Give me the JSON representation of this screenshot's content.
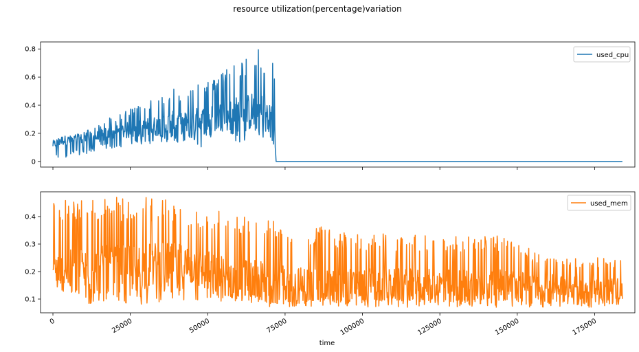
{
  "chart_data": {
    "type": "line",
    "title": "resource utilization(percentage)variation",
    "xlabel": "time",
    "xlim": [
      -4000,
      188000
    ],
    "xticks": [
      0,
      25000,
      50000,
      75000,
      100000,
      125000,
      150000,
      175000
    ],
    "grid": false,
    "subplots": [
      {
        "ylabel": "",
        "ylim": [
          -0.04,
          0.85
        ],
        "yticks": [
          0.0,
          0.2,
          0.4,
          0.6,
          0.8
        ],
        "legend_position": "top-right",
        "series": [
          {
            "name": "used_cpu",
            "color": "#1f77b4",
            "x": [
              0,
              3000,
              6000,
              9000,
              12000,
              15000,
              18000,
              21000,
              24000,
              27000,
              30000,
              33000,
              36000,
              39000,
              42000,
              45000,
              48000,
              51000,
              54000,
              57000,
              60000,
              63000,
              66000,
              69000,
              71500,
              72000,
              80000,
              100000,
              125000,
              150000,
              175000,
              184000
            ],
            "values": [
              0.13,
              0.17,
              0.18,
              0.21,
              0.23,
              0.27,
              0.31,
              0.33,
              0.37,
              0.39,
              0.41,
              0.45,
              0.47,
              0.53,
              0.46,
              0.57,
              0.55,
              0.6,
              0.62,
              0.67,
              0.7,
              0.74,
              0.82,
              0.66,
              0.78,
              0.0,
              0.0,
              0.0,
              0.0,
              0.0,
              0.0,
              0.0
            ],
            "lower_envelope": [
              0.0,
              0.02,
              0.03,
              0.05,
              0.06,
              0.08,
              0.09,
              0.1,
              0.11,
              0.12,
              0.12,
              0.13,
              0.12,
              0.13,
              0.13,
              0.14,
              0.1,
              0.16,
              0.15,
              0.17,
              0.12,
              0.16,
              0.13,
              0.15,
              0.12,
              0.0,
              0.0,
              0.0,
              0.0,
              0.0,
              0.0,
              0.0
            ],
            "typical": [
              0.12,
              0.15,
              0.15,
              0.16,
              0.16,
              0.18,
              0.2,
              0.21,
              0.22,
              0.23,
              0.24,
              0.25,
              0.26,
              0.27,
              0.27,
              0.28,
              0.29,
              0.3,
              0.32,
              0.33,
              0.34,
              0.35,
              0.36,
              0.34,
              0.3,
              0.0,
              0.0,
              0.0,
              0.0,
              0.0,
              0.0,
              0.0
            ]
          }
        ]
      },
      {
        "ylabel": "",
        "ylim": [
          0.05,
          0.49
        ],
        "yticks": [
          0.1,
          0.2,
          0.3,
          0.4
        ],
        "legend_position": "top-right",
        "series": [
          {
            "name": "used_mem",
            "color": "#ff7f0e",
            "x": [
              0,
              10000,
              20000,
              30000,
              40000,
              45000,
              50000,
              55000,
              60000,
              65000,
              70000,
              75000,
              80000,
              90000,
              100000,
              110000,
              125000,
              140000,
              150000,
              160000,
              170000,
              175000,
              184000
            ],
            "values": [
              0.47,
              0.47,
              0.47,
              0.47,
              0.47,
              0.42,
              0.43,
              0.43,
              0.42,
              0.42,
              0.39,
              0.38,
              0.37,
              0.36,
              0.34,
              0.34,
              0.33,
              0.34,
              0.31,
              0.25,
              0.25,
              0.25,
              0.25
            ],
            "lower_envelope": [
              0.17,
              0.08,
              0.08,
              0.08,
              0.09,
              0.08,
              0.09,
              0.08,
              0.08,
              0.08,
              0.07,
              0.07,
              0.07,
              0.07,
              0.07,
              0.07,
              0.07,
              0.07,
              0.07,
              0.07,
              0.07,
              0.07,
              0.08
            ],
            "typical": [
              0.2,
              0.2,
              0.21,
              0.22,
              0.22,
              0.22,
              0.2,
              0.18,
              0.17,
              0.17,
              0.16,
              0.15,
              0.15,
              0.15,
              0.15,
              0.15,
              0.15,
              0.15,
              0.15,
              0.15,
              0.14,
              0.14,
              0.14
            ]
          }
        ]
      }
    ]
  }
}
